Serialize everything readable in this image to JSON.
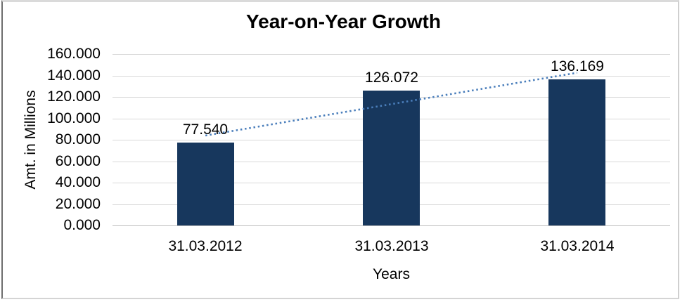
{
  "chart_data": {
    "type": "bar",
    "title": "Year-on-Year Growth",
    "xlabel": "Years",
    "ylabel": "Amt. in Millions",
    "categories": [
      "31.03.2012",
      "31.03.2013",
      "31.03.2014"
    ],
    "values": [
      77.54,
      126.072,
      136.169
    ],
    "data_labels": [
      "77.540",
      "126.072",
      "136.169"
    ],
    "yticks": [
      {
        "value": 0,
        "label": "0.000"
      },
      {
        "value": 20,
        "label": "20.000"
      },
      {
        "value": 40,
        "label": "40.000"
      },
      {
        "value": 60,
        "label": "60.000"
      },
      {
        "value": 80,
        "label": "80.000"
      },
      {
        "value": 100,
        "label": "100.000"
      },
      {
        "value": 120,
        "label": "120.000"
      },
      {
        "value": 140,
        "label": "140.000"
      },
      {
        "value": 160,
        "label": "160.000"
      }
    ],
    "ylim": [
      0,
      160
    ],
    "grid": "horizontal",
    "legend": "none",
    "trendline": {
      "type": "linear",
      "style": "dotted"
    },
    "colors": {
      "bar": "#17375D",
      "trendline": "#4A7EBB",
      "gridline": "#D9D9D9",
      "axis_line": "#BDBDBD",
      "text": "#000000"
    }
  }
}
